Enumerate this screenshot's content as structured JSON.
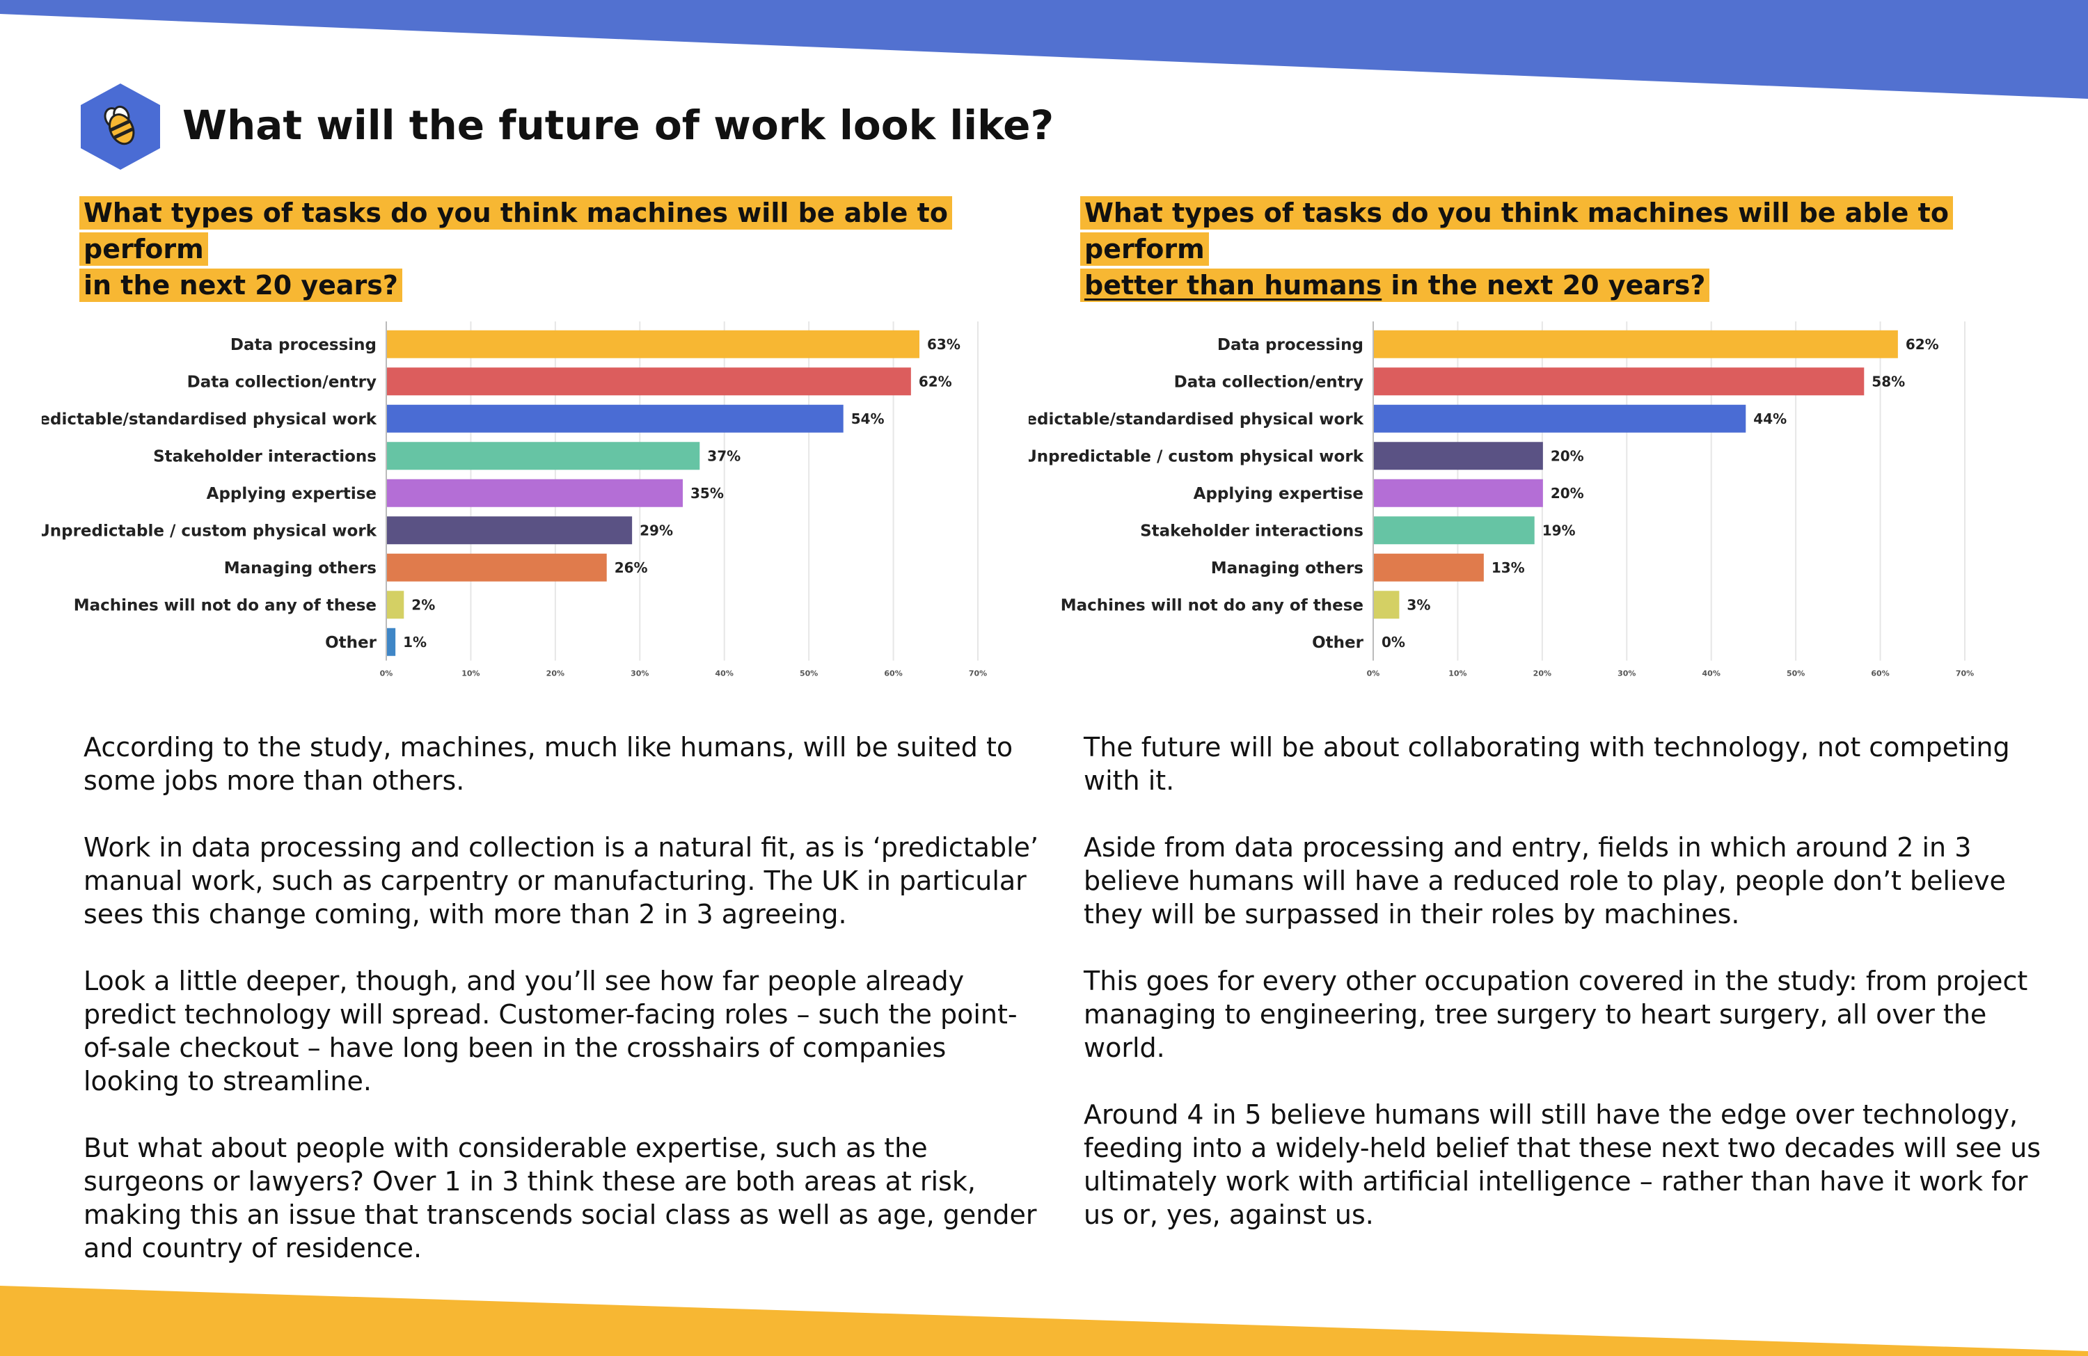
{
  "page": {
    "title": "What will the future of work look like?",
    "banner_color": "#5271d0",
    "footer_color": "#f7b733",
    "highlight_color": "#f7b733"
  },
  "logo": {
    "icon": "bee-icon",
    "color": "#4a6cd4"
  },
  "left": {
    "question_lines": [
      "What types of tasks do you think machines will be able to perform",
      "in the next 20 years?"
    ],
    "paragraphs": [
      "According to the study, machines, much like humans, will be suited to some jobs more than others.",
      "Work in data processing and collection is a natural fit, as is ‘predictable’ manual work, such as carpentry or manufacturing. The UK in particular sees this change coming, with more than 2 in 3 agreeing.",
      "Look a little deeper, though, and you’ll see how far people already predict technology will spread. Customer-facing roles – such the point-of-sale checkout – have long been in the crosshairs of companies looking to streamline.",
      "But what about people with considerable expertise, such as the surgeons or lawyers? Over 1 in 3 think these are both areas at risk, making this an issue that transcends social class as well as age, gender and country of residence."
    ]
  },
  "right": {
    "question_lines": [
      "What types of tasks do you think machines will be able to perform",
      "in the next 20 years?"
    ],
    "question_parts": {
      "line1": "What types of tasks do you think machines will be able to perform",
      "underlined": "better than humans",
      "line2_rest": " in the next 20 years?"
    },
    "paragraphs": [
      "The future will be about collaborating with technology, not competing with it.",
      "Aside from data processing and entry, fields in which around 2 in 3 believe humans will have a reduced role to play, people don’t believe they will be surpassed in their roles by machines.",
      "This goes for every other occupation covered in the study: from project managing to engineering, tree surgery to heart surgery, all over the world.",
      "Around 4 in 5 believe humans will still have the edge over technology, feeding into a widely-held belief that these next two decades will see us ultimately work with artificial intelligence – rather than have it work for us or, yes, against us."
    ]
  },
  "chart_data": [
    {
      "type": "bar",
      "orientation": "horizontal",
      "categories": [
        "Data processing",
        "Data collection/entry",
        "Predictable/standardised physical work",
        "Stakeholder interactions",
        "Applying expertise",
        "Unpredictable / custom physical work",
        "Managing others",
        "Machines will not do any of these",
        "Other"
      ],
      "values": [
        63,
        62,
        54,
        37,
        35,
        29,
        26,
        2,
        1
      ],
      "value_labels": [
        "63%",
        "62%",
        "54%",
        "37%",
        "35%",
        "29%",
        "26%",
        "2%",
        "1%"
      ],
      "colors": [
        "#f7b733",
        "#dc5d5d",
        "#4a6cd4",
        "#66c4a4",
        "#b46ed6",
        "#5a5284",
        "#e07b4c",
        "#d4d064",
        "#3f86c6"
      ],
      "xlim": [
        0,
        70
      ],
      "xticks": [
        "0%",
        "10%",
        "20%",
        "30%",
        "40%",
        "50%",
        "60%",
        "70%"
      ],
      "grid": true,
      "title": "",
      "xlabel": "",
      "ylabel": ""
    },
    {
      "type": "bar",
      "orientation": "horizontal",
      "categories": [
        "Data processing",
        "Data collection/entry",
        "Predictable/standardised physical work",
        "Unpredictable / custom physical work",
        "Applying expertise",
        "Stakeholder interactions",
        "Managing others",
        "Machines will not do any of these",
        "Other"
      ],
      "values": [
        62,
        58,
        44,
        20,
        20,
        19,
        13,
        3,
        0
      ],
      "value_labels": [
        "62%",
        "58%",
        "44%",
        "20%",
        "20%",
        "19%",
        "13%",
        "3%",
        "0%"
      ],
      "colors": [
        "#f7b733",
        "#dc5d5d",
        "#4a6cd4",
        "#5a5284",
        "#b46ed6",
        "#66c4a4",
        "#e07b4c",
        "#d4d064",
        "#3f86c6"
      ],
      "xlim": [
        0,
        70
      ],
      "xticks": [
        "0%",
        "10%",
        "20%",
        "30%",
        "40%",
        "50%",
        "60%",
        "70%"
      ],
      "grid": true,
      "title": "",
      "xlabel": "",
      "ylabel": ""
    }
  ]
}
